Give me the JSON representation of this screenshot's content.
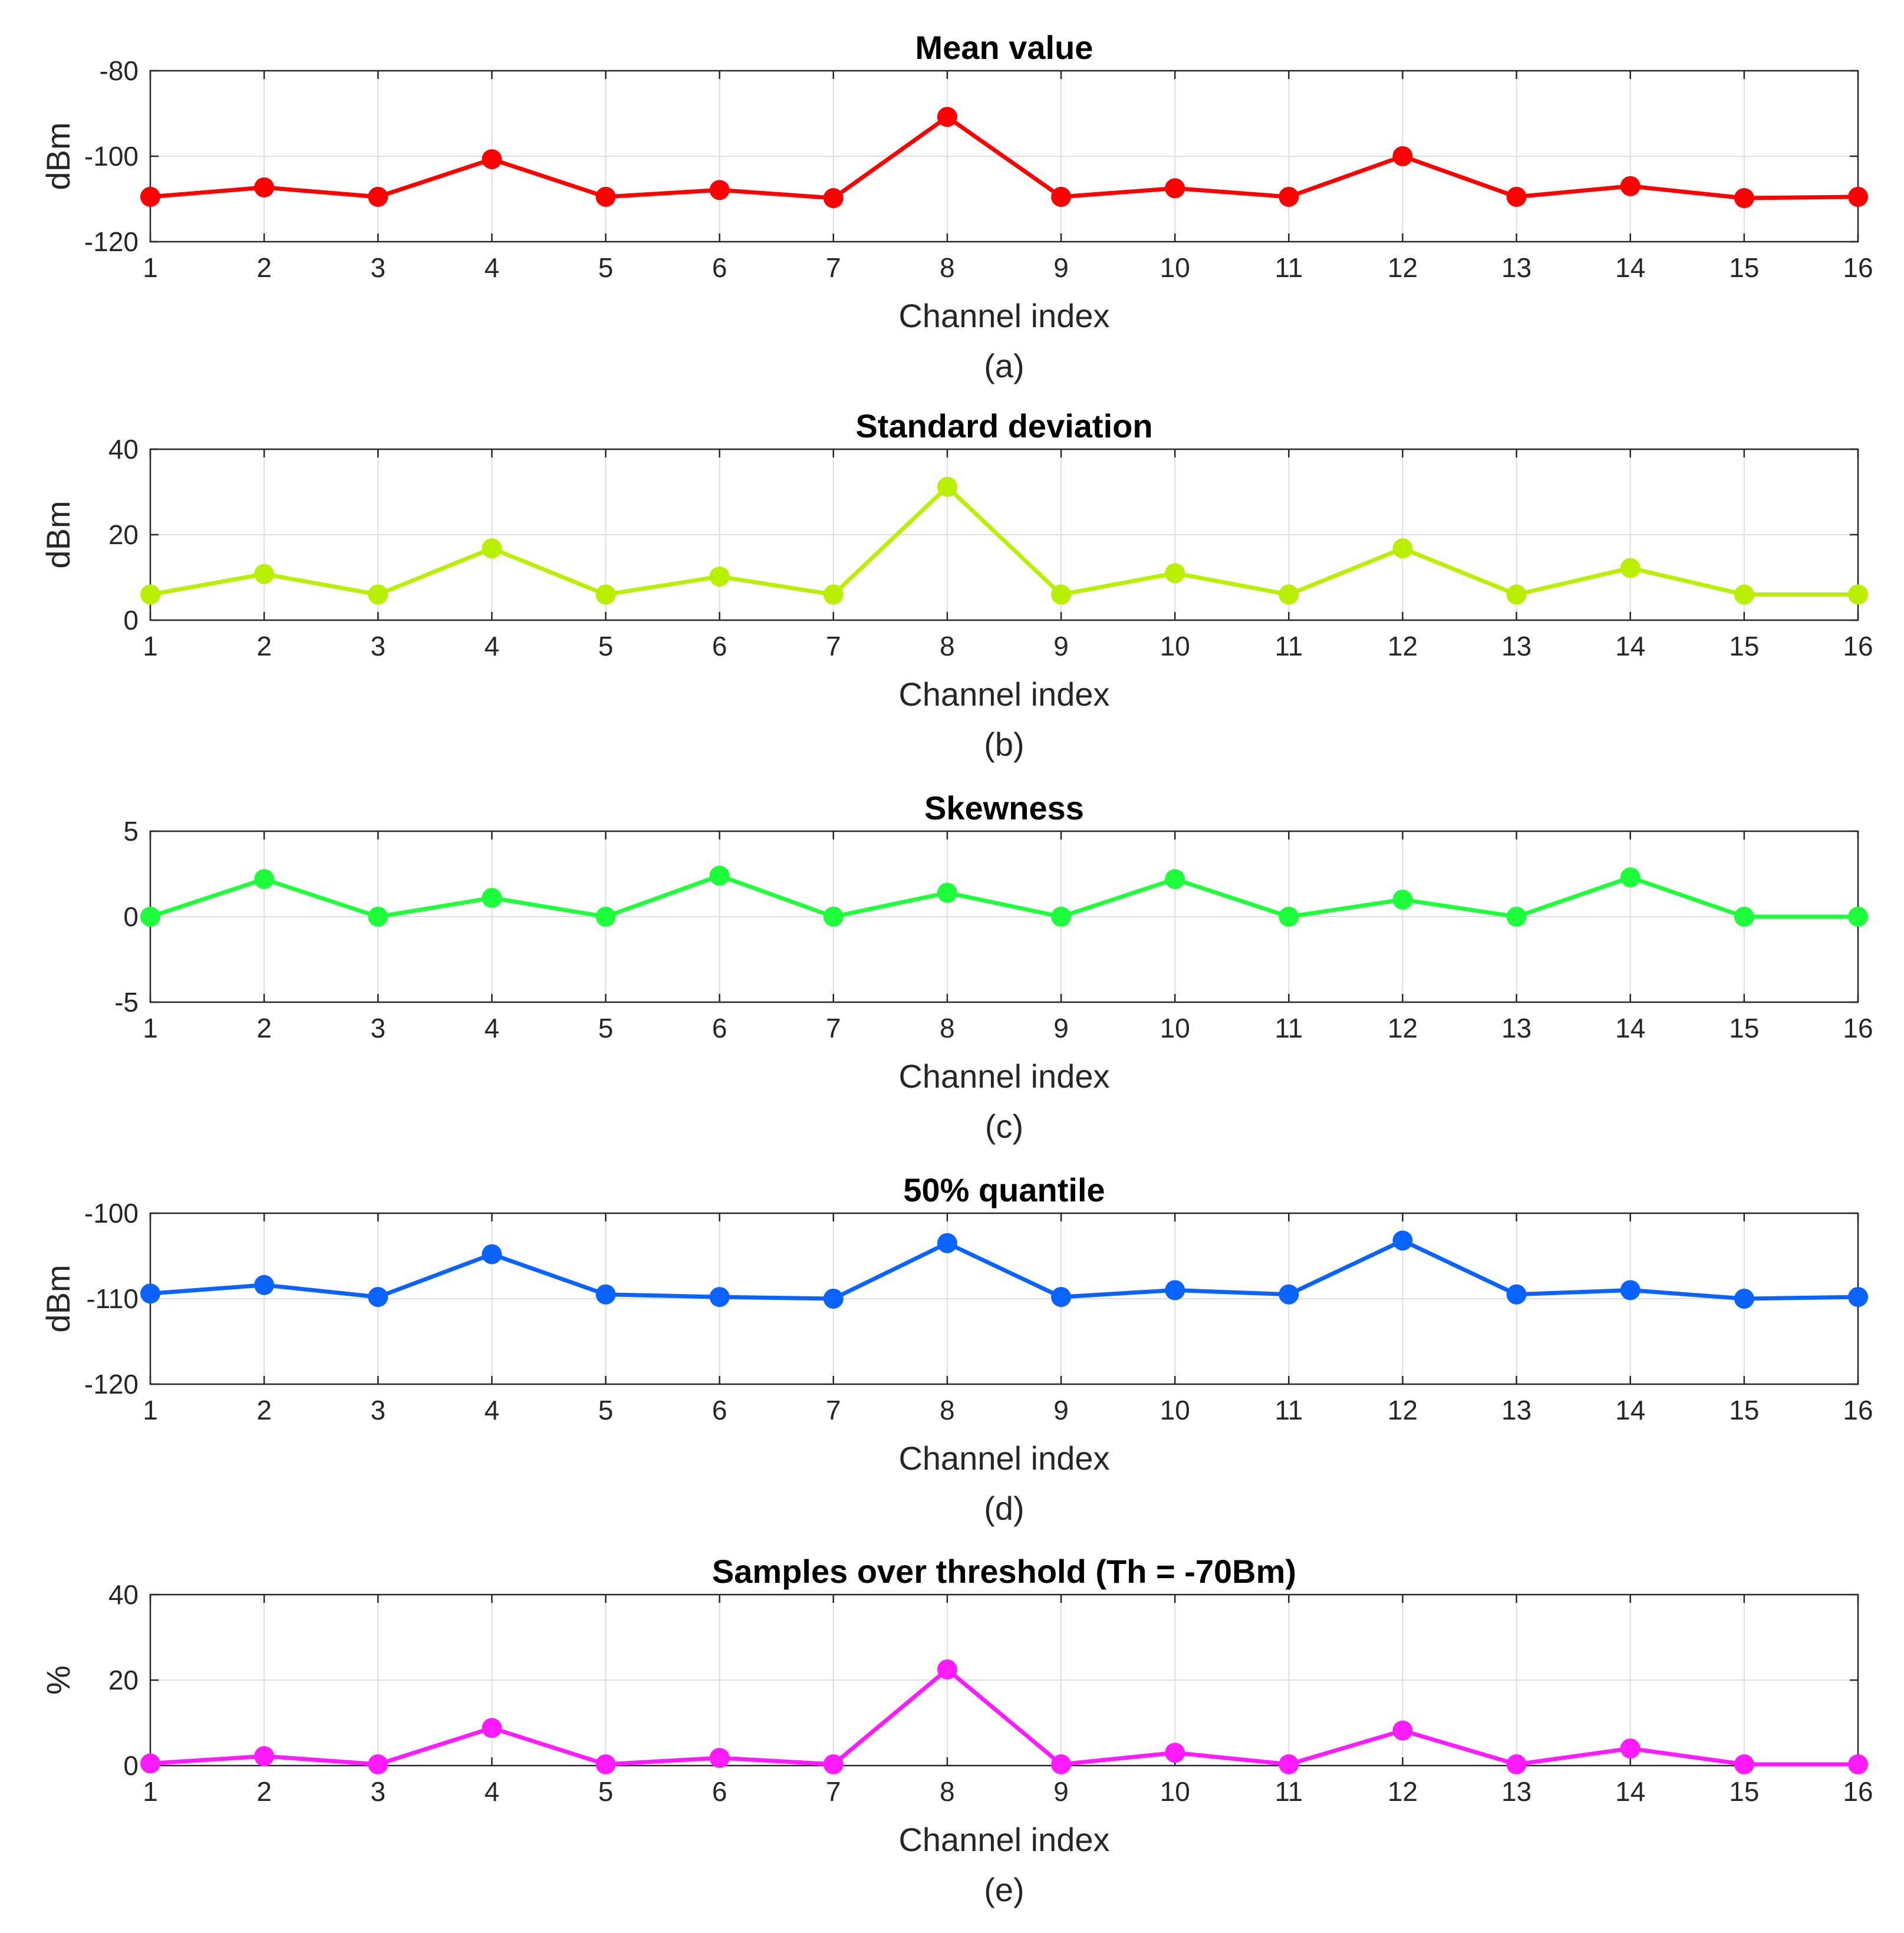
{
  "chart_data": [
    {
      "type": "line",
      "title": "Mean value",
      "xlabel": "Channel index",
      "ylabel": "dBm",
      "caption": "(a)",
      "color": "#ff0000",
      "ylim": [
        -120,
        -80
      ],
      "yticks": [
        -80,
        -100,
        -120
      ],
      "xticks": [
        1,
        2,
        3,
        4,
        5,
        6,
        7,
        8,
        9,
        10,
        11,
        12,
        13,
        14,
        15,
        16
      ],
      "grid": true,
      "series": [
        {
          "name": "Mean value",
          "x": [
            1,
            2,
            3,
            4,
            5,
            6,
            7,
            8,
            9,
            10,
            11,
            12,
            13,
            14,
            15,
            16
          ],
          "values": [
            -109.5,
            -107.3,
            -109.5,
            -100.7,
            -109.5,
            -107.9,
            -109.8,
            -90.8,
            -109.5,
            -107.5,
            -109.5,
            -100,
            -109.5,
            -107,
            -109.8,
            -109.5
          ]
        }
      ]
    },
    {
      "type": "line",
      "title": "Standard deviation",
      "xlabel": "Channel index",
      "ylabel": "dBm",
      "caption": "(b)",
      "color": "#b8f000",
      "ylim": [
        0,
        40
      ],
      "yticks": [
        40,
        20,
        0
      ],
      "xticks": [
        1,
        2,
        3,
        4,
        5,
        6,
        7,
        8,
        9,
        10,
        11,
        12,
        13,
        14,
        15,
        16
      ],
      "grid": true,
      "series": [
        {
          "name": "Standard deviation",
          "x": [
            1,
            2,
            3,
            4,
            5,
            6,
            7,
            8,
            9,
            10,
            11,
            12,
            13,
            14,
            15,
            16
          ],
          "values": [
            6,
            10.8,
            6,
            16.8,
            6,
            10.2,
            6,
            31.2,
            6,
            11,
            6,
            16.8,
            6,
            12.2,
            6,
            6
          ]
        }
      ]
    },
    {
      "type": "line",
      "title": "Skewness",
      "xlabel": "Channel index",
      "ylabel": "",
      "caption": "(c)",
      "color": "#1dff3b",
      "ylim": [
        -5,
        5
      ],
      "yticks": [
        5,
        0,
        -5
      ],
      "xticks": [
        1,
        2,
        3,
        4,
        5,
        6,
        7,
        8,
        9,
        10,
        11,
        12,
        13,
        14,
        15,
        16
      ],
      "grid": true,
      "series": [
        {
          "name": "Skewness",
          "x": [
            1,
            2,
            3,
            4,
            5,
            6,
            7,
            8,
            9,
            10,
            11,
            12,
            13,
            14,
            15,
            16
          ],
          "values": [
            0,
            2.2,
            0,
            1.1,
            0,
            2.4,
            0,
            1.4,
            0,
            2.2,
            0,
            1,
            0,
            2.3,
            0,
            0
          ]
        }
      ]
    },
    {
      "type": "line",
      "title": "50% quantile",
      "xlabel": "Channel index",
      "ylabel": "dBm",
      "caption": "(d)",
      "color": "#0a63ff",
      "ylim": [
        -120,
        -100
      ],
      "yticks": [
        -100,
        -110,
        -120
      ],
      "xticks": [
        1,
        2,
        3,
        4,
        5,
        6,
        7,
        8,
        9,
        10,
        11,
        12,
        13,
        14,
        15,
        16
      ],
      "grid": true,
      "series": [
        {
          "name": "50% quantile",
          "x": [
            1,
            2,
            3,
            4,
            5,
            6,
            7,
            8,
            9,
            10,
            11,
            12,
            13,
            14,
            15,
            16
          ],
          "values": [
            -109.4,
            -108.4,
            -109.8,
            -104.8,
            -109.5,
            -109.8,
            -110,
            -103.5,
            -109.8,
            -109,
            -109.5,
            -103.2,
            -109.5,
            -109,
            -110,
            -109.8
          ]
        }
      ]
    },
    {
      "type": "line",
      "title": "Samples over threshold (Th = -70Bm)",
      "xlabel": "Channel index",
      "ylabel": "%",
      "caption": "(e)",
      "color": "#ff1bff",
      "ylim": [
        0,
        40
      ],
      "yticks": [
        40,
        20,
        0
      ],
      "xticks": [
        1,
        2,
        3,
        4,
        5,
        6,
        7,
        8,
        9,
        10,
        11,
        12,
        13,
        14,
        15,
        16
      ],
      "grid": true,
      "series": [
        {
          "name": "Samples over threshold",
          "x": [
            1,
            2,
            3,
            4,
            5,
            6,
            7,
            8,
            9,
            10,
            11,
            12,
            13,
            14,
            15,
            16
          ],
          "values": [
            0.5,
            2.2,
            0.3,
            8.8,
            0.3,
            1.8,
            0.3,
            22.5,
            0.3,
            3,
            0.3,
            8.2,
            0.3,
            4,
            0.3,
            0.3
          ]
        }
      ]
    }
  ]
}
